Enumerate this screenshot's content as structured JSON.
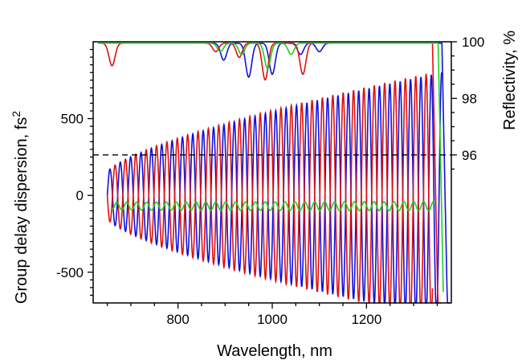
{
  "chart_data": {
    "type": "line",
    "xlabel": "Wavelength, nm",
    "ylabel_left": "Group delay dispersion, fs",
    "ylabel_left_sup": "2",
    "ylabel_right": "Reflectivity, %",
    "xlim": [
      620,
      1380
    ],
    "ylim_left": [
      -700,
      1000
    ],
    "ylim_right": [
      95,
      100
    ],
    "x_ticks": [
      800,
      1000,
      1200
    ],
    "x_tick_labels": [
      "800",
      "1000",
      "1200"
    ],
    "y_left_ticks": [
      -500,
      0,
      500
    ],
    "y_left_tick_labels": [
      "-500",
      "0",
      "500"
    ],
    "y_right_ticks": [
      96,
      98,
      100
    ],
    "y_right_tick_labels": [
      "96",
      "98",
      "100"
    ],
    "reference_line": {
      "axis": "right",
      "value": 96,
      "style": "dashed"
    },
    "series": [
      {
        "color": "#1010e0",
        "gdd": {
          "start": 650,
          "end": 1360,
          "period": 22,
          "phase": 0,
          "amp_start": 150,
          "amp_end": 800,
          "offset": 0
        },
        "reflectivity_dips": [
          [
            897,
            0.6
          ],
          [
            950,
            1.2
          ],
          [
            1000,
            1.1
          ],
          [
            1060,
            0.4
          ],
          [
            1100,
            0.3
          ]
        ],
        "band_edge": 1360
      },
      {
        "color": "#e01010",
        "gdd": {
          "start": 650,
          "end": 1340,
          "period": 22,
          "phase": 11,
          "amp_start": 150,
          "amp_end": 800,
          "offset": 0
        },
        "reflectivity_dips": [
          [
            660,
            0.8
          ],
          [
            880,
            0.3
          ],
          [
            930,
            0.5
          ],
          [
            985,
            1.3
          ],
          [
            1065,
            1.1
          ]
        ],
        "band_edge": 1340
      },
      {
        "color": "#20d020",
        "gdd": {
          "start": 660,
          "end": 1345,
          "period": 21,
          "phase": 5,
          "amp_start": 25,
          "amp_end": 30,
          "offset": -70
        },
        "reflectivity_dips": [
          [
            890,
            0.3
          ],
          [
            935,
            0.4
          ],
          [
            990,
            0.9
          ],
          [
            1040,
            0.4
          ]
        ],
        "band_edge": 1352
      }
    ]
  }
}
